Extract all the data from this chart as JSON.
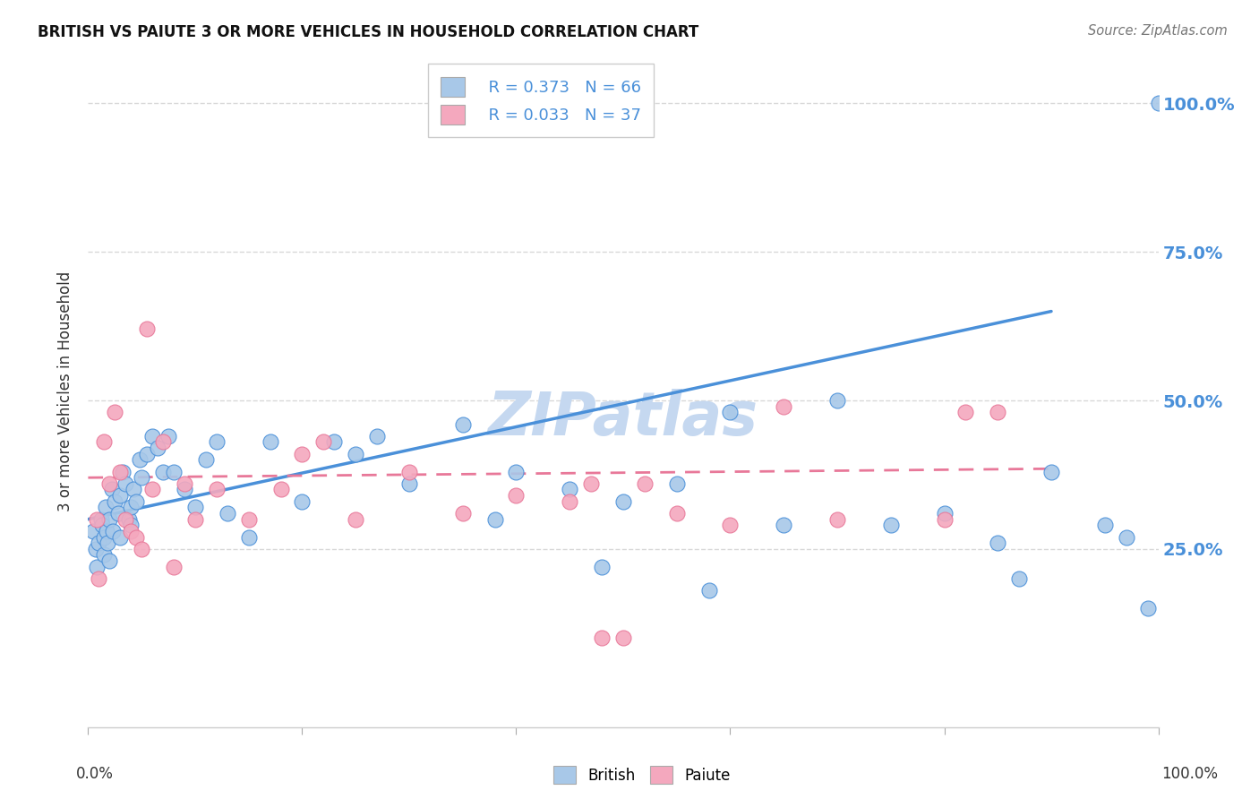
{
  "title": "BRITISH VS PAIUTE 3 OR MORE VEHICLES IN HOUSEHOLD CORRELATION CHART",
  "source": "Source: ZipAtlas.com",
  "ylabel": "3 or more Vehicles in Household",
  "xlim": [
    0,
    100
  ],
  "ylim": [
    -5,
    108
  ],
  "ytick_labels": [
    "25.0%",
    "50.0%",
    "75.0%",
    "100.0%"
  ],
  "ytick_values": [
    25,
    50,
    75,
    100
  ],
  "legend_british_R": "R = 0.373",
  "legend_british_N": "N = 66",
  "legend_paiute_R": "R = 0.033",
  "legend_paiute_N": "N = 37",
  "british_color": "#a8c8e8",
  "paiute_color": "#f4a8be",
  "british_line_color": "#4a90d9",
  "paiute_line_color": "#e87899",
  "watermark": "ZIPatlas",
  "watermark_color": "#c5d8f0",
  "british_x": [
    0.5,
    0.7,
    0.8,
    1.0,
    1.2,
    1.3,
    1.5,
    1.5,
    1.6,
    1.7,
    1.8,
    2.0,
    2.0,
    2.2,
    2.3,
    2.5,
    2.8,
    3.0,
    3.0,
    3.2,
    3.5,
    3.8,
    4.0,
    4.0,
    4.2,
    4.5,
    4.8,
    5.0,
    5.5,
    6.0,
    6.5,
    7.0,
    7.5,
    8.0,
    9.0,
    10.0,
    11.0,
    12.0,
    13.0,
    15.0,
    17.0,
    20.0,
    23.0,
    25.0,
    27.0,
    30.0,
    35.0,
    38.0,
    40.0,
    45.0,
    48.0,
    50.0,
    55.0,
    58.0,
    60.0,
    65.0,
    70.0,
    75.0,
    80.0,
    85.0,
    87.0,
    90.0,
    95.0,
    97.0,
    99.0,
    100.0
  ],
  "british_y": [
    28,
    25,
    22,
    26,
    30,
    29,
    27,
    24,
    32,
    28,
    26,
    30,
    23,
    35,
    28,
    33,
    31,
    34,
    27,
    38,
    36,
    30,
    29,
    32,
    35,
    33,
    40,
    37,
    41,
    44,
    42,
    38,
    44,
    38,
    35,
    32,
    40,
    43,
    31,
    27,
    43,
    33,
    43,
    41,
    44,
    36,
    46,
    30,
    38,
    35,
    22,
    33,
    36,
    18,
    48,
    29,
    50,
    29,
    31,
    26,
    20,
    38,
    29,
    27,
    15,
    100
  ],
  "paiute_x": [
    0.8,
    1.0,
    1.5,
    2.0,
    2.5,
    3.0,
    3.5,
    4.0,
    4.5,
    5.0,
    5.5,
    6.0,
    7.0,
    8.0,
    9.0,
    10.0,
    12.0,
    15.0,
    18.0,
    20.0,
    22.0,
    25.0,
    30.0,
    35.0,
    40.0,
    45.0,
    47.0,
    48.0,
    50.0,
    52.0,
    55.0,
    60.0,
    65.0,
    70.0,
    80.0,
    82.0,
    85.0
  ],
  "paiute_y": [
    30,
    20,
    43,
    36,
    48,
    38,
    30,
    28,
    27,
    25,
    62,
    35,
    43,
    22,
    36,
    30,
    35,
    30,
    35,
    41,
    43,
    30,
    38,
    31,
    34,
    33,
    36,
    10,
    10,
    36,
    31,
    29,
    49,
    30,
    30,
    48,
    48
  ],
  "british_trend_x": [
    0,
    90
  ],
  "british_trend_y": [
    30,
    65
  ],
  "paiute_trend_x": [
    0,
    90
  ],
  "paiute_trend_y": [
    37,
    38.5
  ],
  "background_color": "#ffffff",
  "grid_color": "#d8d8d8"
}
